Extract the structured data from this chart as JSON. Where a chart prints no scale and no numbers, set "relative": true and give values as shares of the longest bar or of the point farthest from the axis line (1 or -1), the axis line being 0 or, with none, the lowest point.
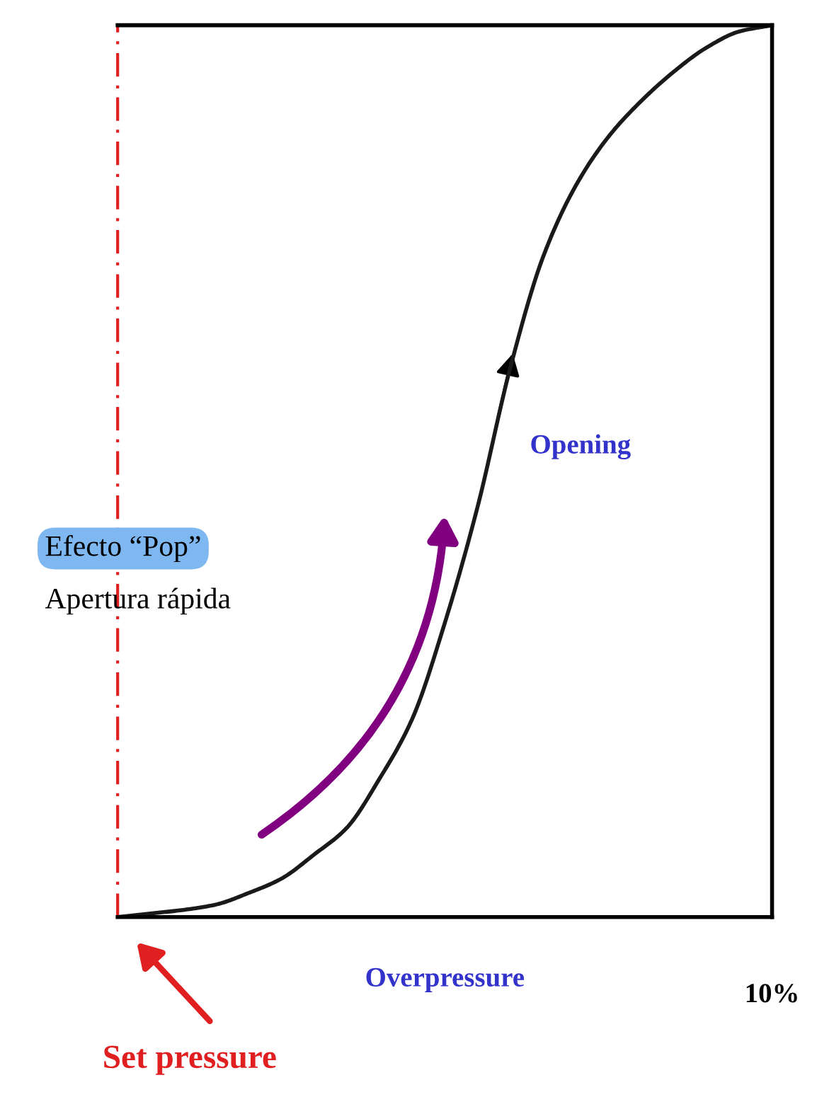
{
  "chart_data": {
    "type": "line",
    "relative": true,
    "categories": [
      null,
      null,
      null,
      null,
      null,
      null,
      null,
      null,
      null,
      null,
      null,
      null,
      null,
      null,
      null,
      null,
      null,
      null,
      null,
      null,
      null
    ],
    "series": [
      {
        "color": "#1a1a1a",
        "values": [
          0,
          0.004,
          0.008,
          0.014,
          0.027,
          0.043,
          0.07,
          0.1,
          0.155,
          0.222,
          0.33,
          0.46,
          0.616,
          0.74,
          0.82,
          0.875,
          0.915,
          0.948,
          0.975,
          0.993,
          1
        ]
      }
    ],
    "xlabel": "Overpressure",
    "annotations": [
      "Opening",
      "Efecto “Pop”",
      "Apertura rápida",
      "10%",
      "Set pressure"
    ],
    "marker": "none",
    "line_style": "solid"
  }
}
